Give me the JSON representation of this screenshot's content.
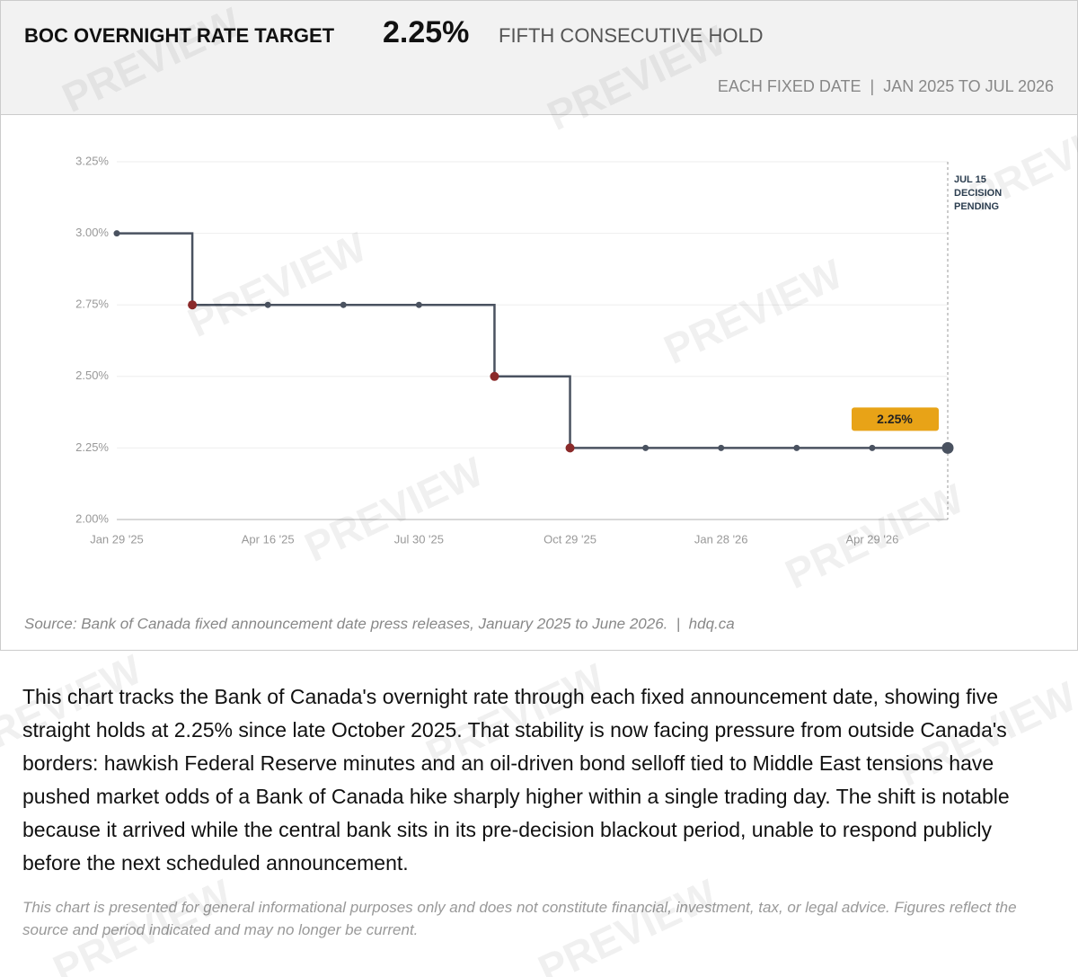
{
  "chart_data": {
    "type": "step-line",
    "title": "BOC OVERNIGHT RATE TARGET",
    "headline_value": "2.25%",
    "headline_note": "FIFTH CONSECUTIVE HOLD",
    "subtitle": "EACH FIXED DATE  |  JAN 2025 TO JUL 2026",
    "categories": [
      "Jan 29 '25",
      null,
      "Apr 16 '25",
      null,
      "Jul 30 '25",
      null,
      "Oct 29 '25",
      null,
      "Jan 28 '26",
      null,
      "Apr 29 '26",
      null
    ],
    "values": [
      3.0,
      2.75,
      2.75,
      2.75,
      2.75,
      2.5,
      2.25,
      2.25,
      2.25,
      2.25,
      2.25,
      2.25
    ],
    "value_labels": [
      null,
      null,
      null,
      null,
      null,
      null,
      null,
      null,
      null,
      null,
      null,
      "2.25%"
    ],
    "color": "#4a5260",
    "cut_color": "#8b2a2a",
    "label_color": "#e8a317",
    "ylim": [
      2.0,
      3.25
    ],
    "yticks": [
      {
        "value": 2.0,
        "label": "2.00%"
      },
      {
        "value": 2.25,
        "label": "2.25%"
      },
      {
        "value": 2.5,
        "label": "2.50%"
      },
      {
        "value": 2.75,
        "label": "2.75%"
      },
      {
        "value": 3.0,
        "label": "3.00%"
      },
      {
        "value": 3.25,
        "label": "3.25%"
      }
    ],
    "grid": true,
    "annotation": [
      "JUL 15",
      "DECISION",
      "PENDING"
    ],
    "source": "Source: Bank of Canada fixed announcement date press releases, January 2025 to June 2026.  |  hdq.ca"
  },
  "body": "This chart tracks the Bank of Canada's overnight rate through each fixed announcement date, showing five straight holds at 2.25% since late October 2025. That stability is now facing pressure from outside Canada's borders: hawkish Federal Reserve minutes and an oil-driven bond selloff tied to Middle East tensions have pushed market odds of a Bank of Canada hike sharply higher within a single trading day. The shift is notable because it arrived while the central bank sits in its pre-decision blackout period, unable to respond publicly before the next scheduled announcement.",
  "disclaimer": "This chart is presented for general informational purposes only and does not constitute financial, investment, tax, or legal advice. Figures reflect the source and period indicated and may no longer be current.",
  "watermark": "PREVIEW"
}
